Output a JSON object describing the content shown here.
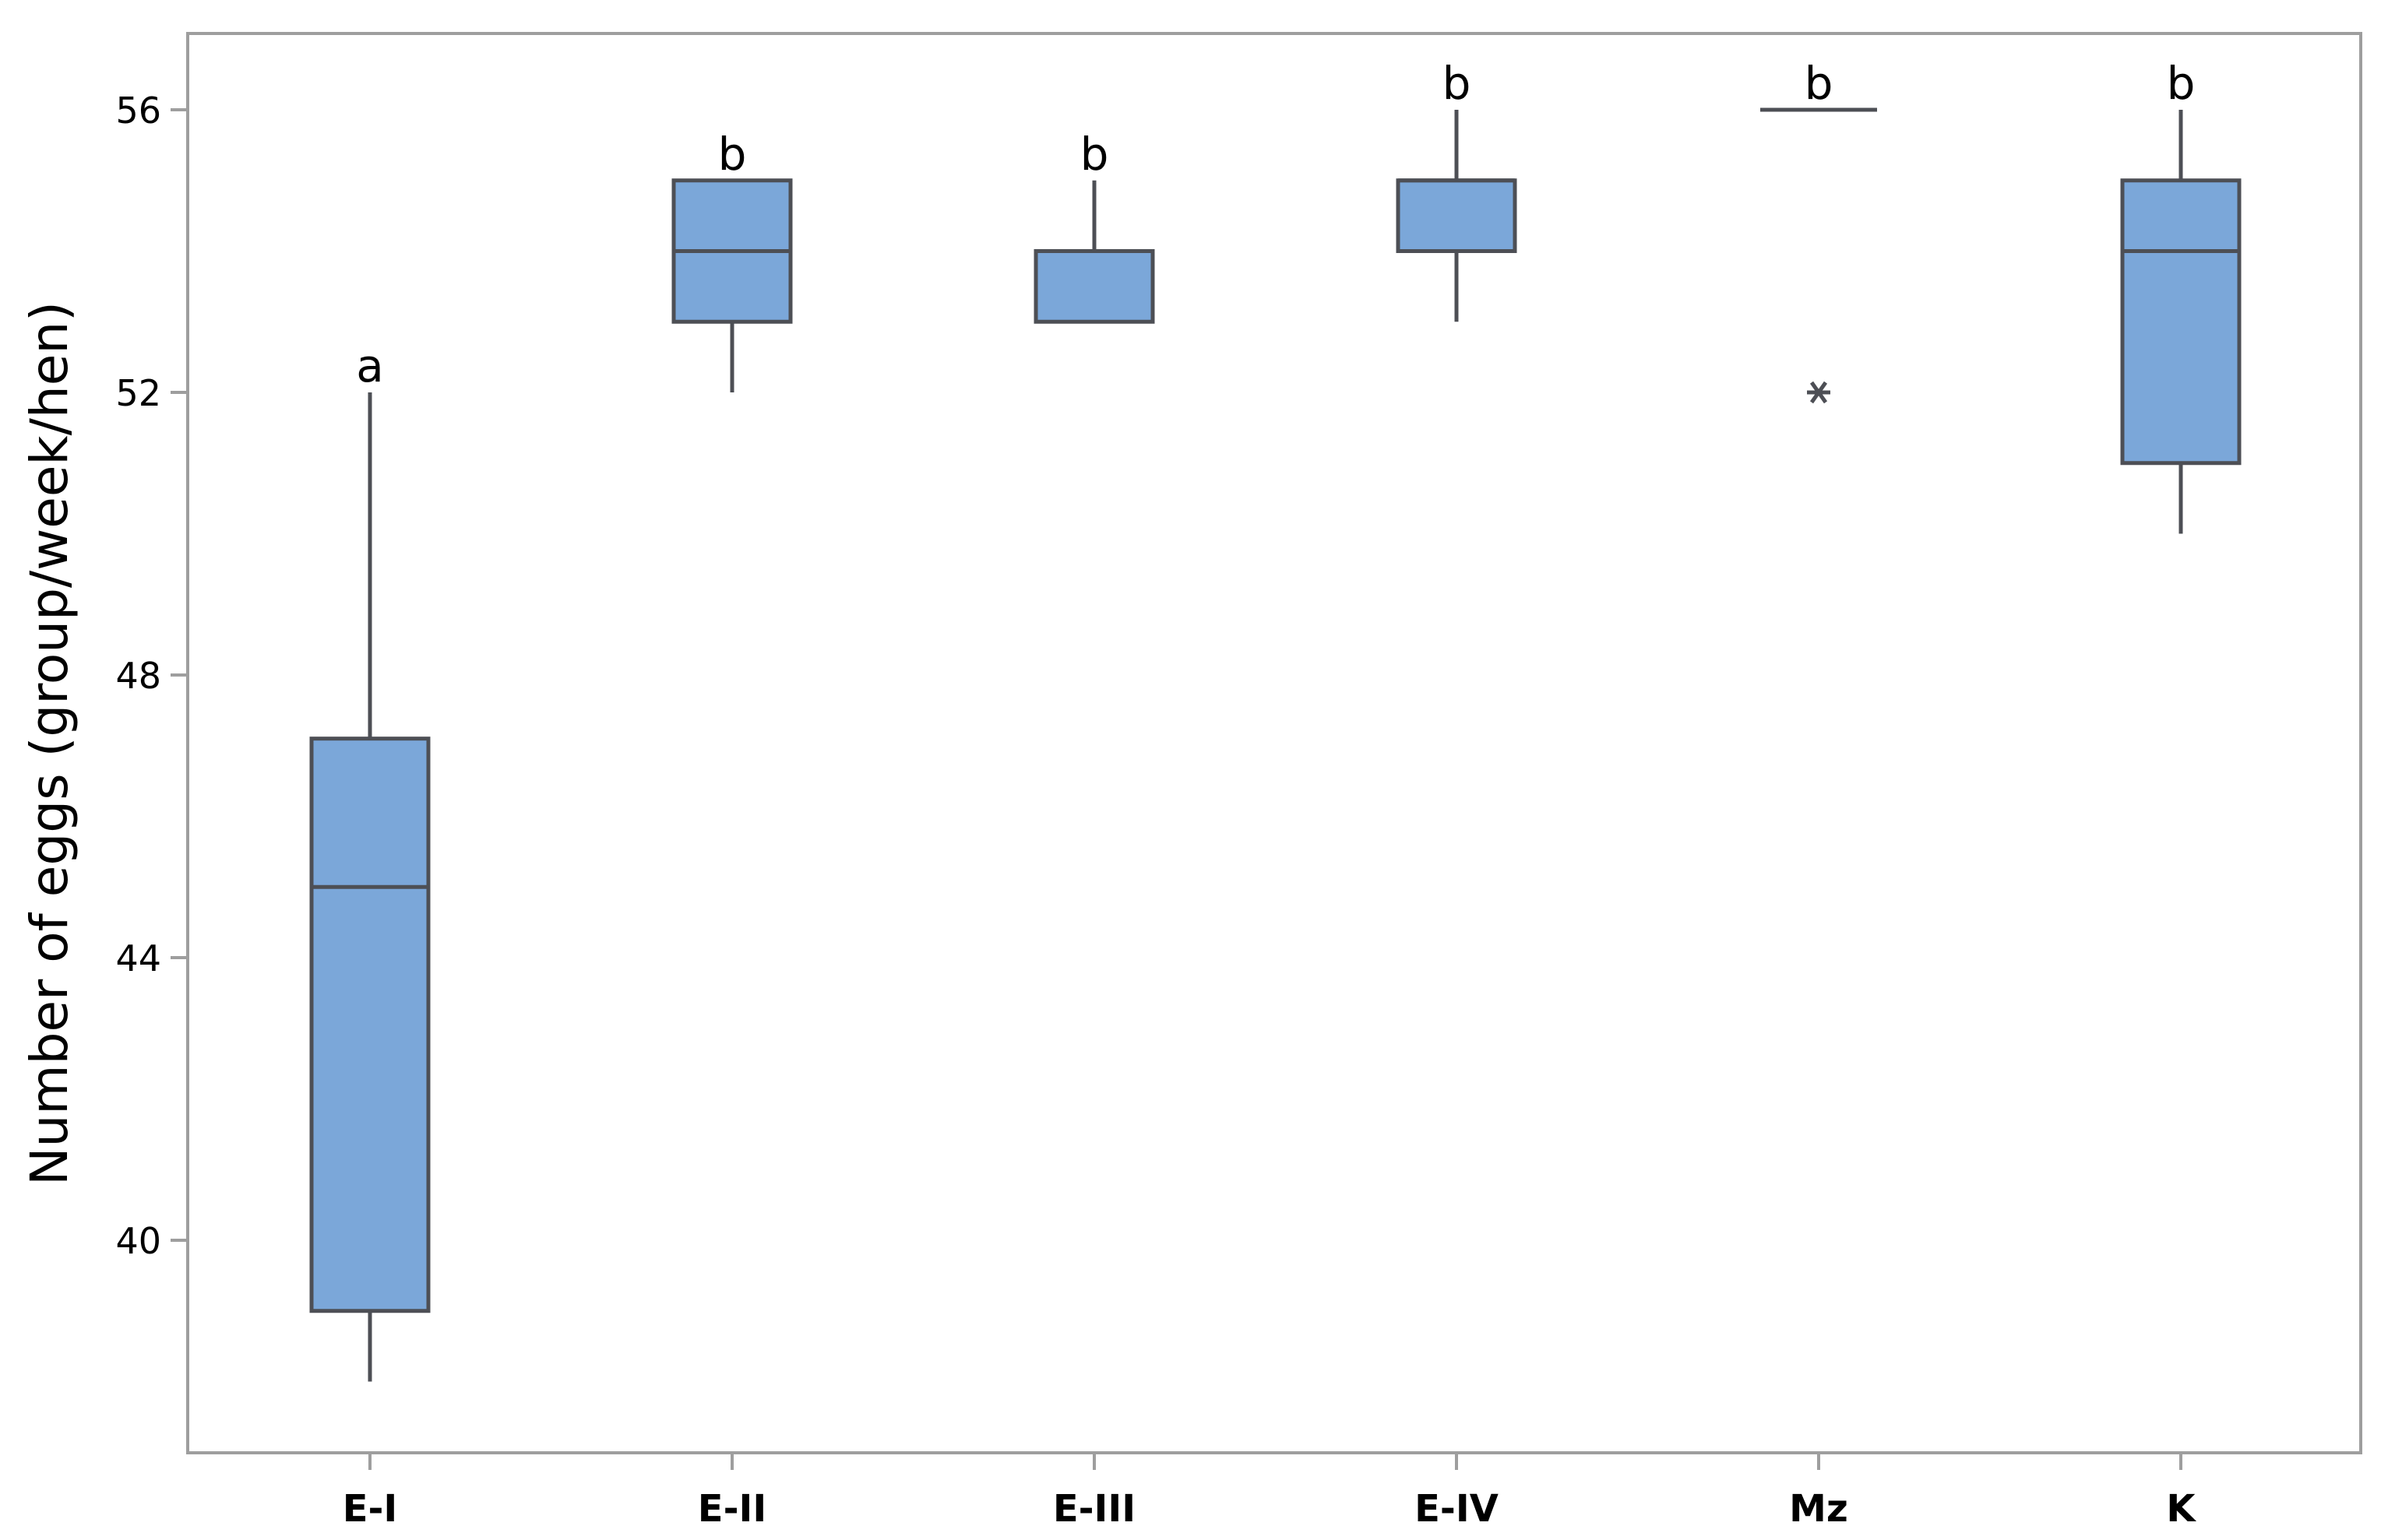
{
  "chart_data": {
    "type": "box",
    "ylabel": "Number of eggs (group/week/hen)",
    "xlabel": "",
    "ylim": [
      37,
      57.1
    ],
    "yticks": [
      40,
      44,
      48,
      52,
      56
    ],
    "categories": [
      "E-I",
      "E-II",
      "E-III",
      "E-IV",
      "Mz",
      "K"
    ],
    "boxes": [
      {
        "category": "E-I",
        "whisker_low": 38,
        "q1": 39,
        "median": 45,
        "q3": 47.1,
        "whisker_high": 52,
        "outliers": [],
        "letter": "a"
      },
      {
        "category": "E-II",
        "whisker_low": 52,
        "q1": 53,
        "median": 54,
        "q3": 55,
        "whisker_high": 55,
        "outliers": [],
        "letter": "b"
      },
      {
        "category": "E-III",
        "whisker_low": 53,
        "q1": 53,
        "median": 54,
        "q3": 54,
        "whisker_high": 55,
        "outliers": [],
        "letter": "b"
      },
      {
        "category": "E-IV",
        "whisker_low": 53,
        "q1": 54,
        "median": 55,
        "q3": 55,
        "whisker_high": 56,
        "outliers": [],
        "letter": "b"
      },
      {
        "category": "Mz",
        "whisker_low": 56,
        "q1": 56,
        "median": 56,
        "q3": 56,
        "whisker_high": 56,
        "outliers": [
          52
        ],
        "letter": "b"
      },
      {
        "category": "K",
        "whisker_low": 50,
        "q1": 51,
        "median": 54,
        "q3": 55,
        "whisker_high": 56,
        "outliers": [],
        "letter": "b"
      }
    ],
    "colors": {
      "box_fill": "#7BA7D9",
      "box_stroke": "#4D4F55",
      "axis": "#9E9E9E",
      "text": "#000000"
    }
  }
}
